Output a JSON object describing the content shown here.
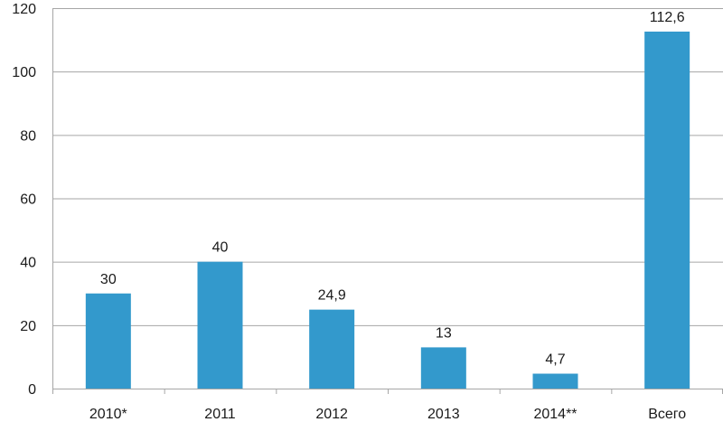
{
  "chart_data": {
    "type": "bar",
    "title": "",
    "xlabel": "",
    "ylabel": "",
    "categories": [
      "2010*",
      "2011",
      "2012",
      "2013",
      "2014**",
      "Всего"
    ],
    "values": [
      30,
      40,
      24.9,
      13,
      4.7,
      112.6
    ],
    "value_labels": [
      "30",
      "40",
      "24,9",
      "13",
      "4,7",
      "112,6"
    ],
    "y_ticks": [
      "0",
      "20",
      "40",
      "60",
      "80",
      "100",
      "120"
    ],
    "ylim": [
      0,
      120
    ],
    "grid": true,
    "legend": "none",
    "bar_color": "#3399cc"
  }
}
